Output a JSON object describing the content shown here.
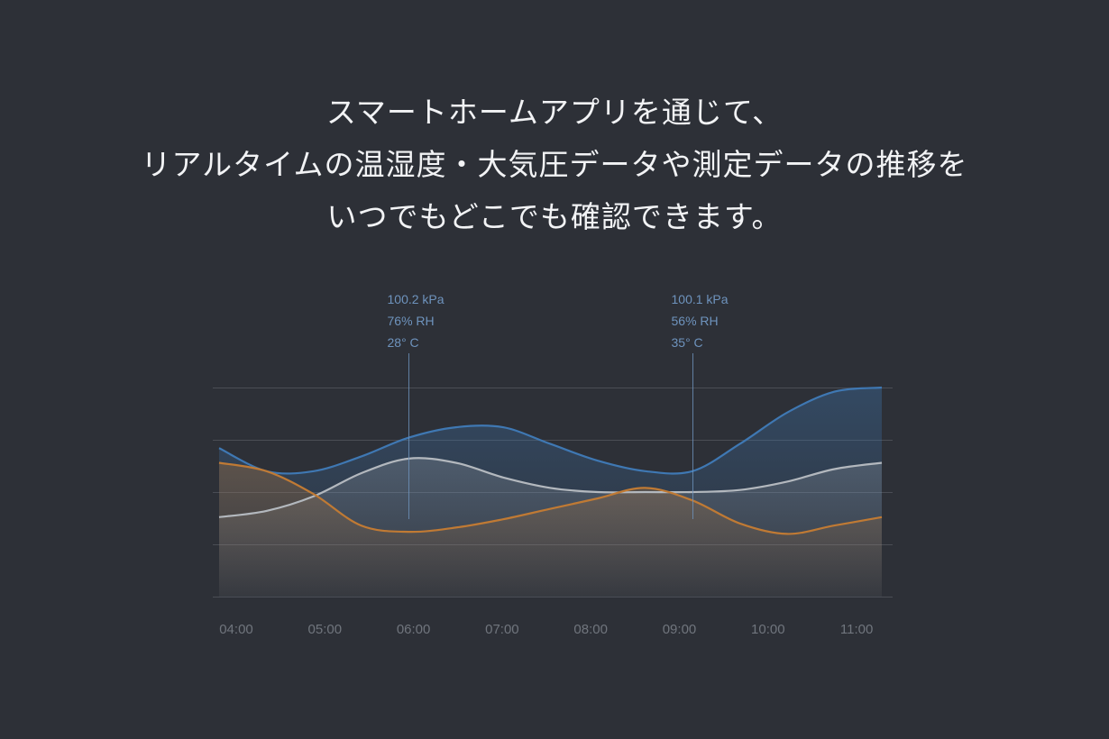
{
  "headline": {
    "line1": "スマートホームアプリを通じて、",
    "line2": "リアルタイムの温湿度・大気圧データや測定データの推移を",
    "line3": "いつでもどこでも確認できます。"
  },
  "colors": {
    "background": "#2d3037",
    "pressure": "#3f78b3",
    "humidity": "#b3b8be",
    "temperature": "#c07a34",
    "annotation": "#6e93bd"
  },
  "chart_data": {
    "type": "area",
    "categories": [
      "04:00",
      "05:00",
      "06:00",
      "07:00",
      "08:00",
      "09:00",
      "10:00",
      "11:00"
    ],
    "x": [
      4.0,
      4.5,
      5.0,
      5.5,
      6.0,
      6.5,
      7.0,
      7.5,
      8.0,
      8.5,
      9.0,
      9.5,
      10.0,
      10.5,
      11.0
    ],
    "series": [
      {
        "key": "pressure",
        "values": [
          0.71,
          0.6,
          0.6,
          0.67,
          0.76,
          0.81,
          0.81,
          0.73,
          0.65,
          0.6,
          0.6,
          0.73,
          0.88,
          0.98,
          1.0
        ]
      },
      {
        "key": "humidity",
        "values": [
          0.38,
          0.41,
          0.48,
          0.59,
          0.66,
          0.64,
          0.57,
          0.52,
          0.5,
          0.5,
          0.5,
          0.51,
          0.55,
          0.61,
          0.64
        ]
      },
      {
        "key": "temperature",
        "values": [
          0.64,
          0.6,
          0.49,
          0.34,
          0.31,
          0.33,
          0.37,
          0.42,
          0.47,
          0.52,
          0.46,
          0.35,
          0.3,
          0.34,
          0.38
        ]
      }
    ],
    "ylim": [
      0,
      1
    ],
    "grid": true,
    "annotations": [
      {
        "x": 6.0,
        "lines": [
          "100.2 kPa",
          "76% RH",
          "28° C"
        ]
      },
      {
        "x": 9.0,
        "lines": [
          "100.1 kPa",
          "56% RH",
          "35° C"
        ]
      }
    ]
  }
}
